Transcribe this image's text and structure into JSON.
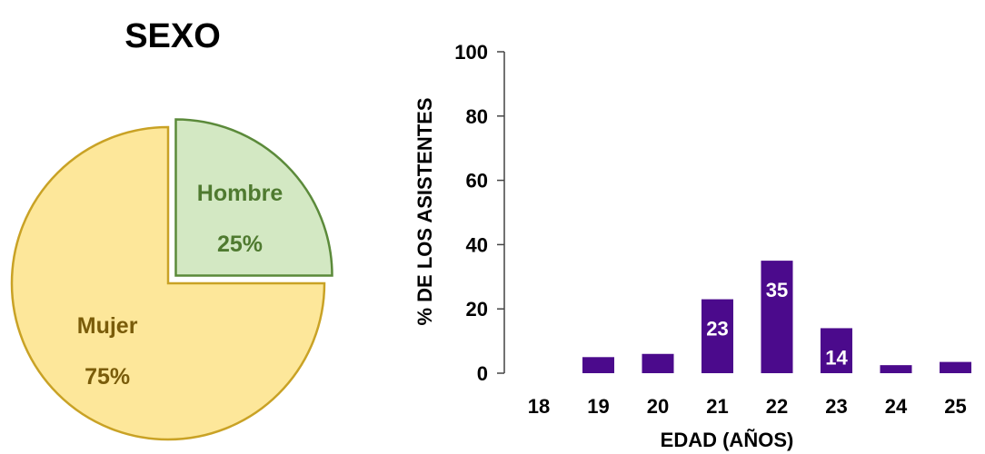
{
  "chart_data": [
    {
      "type": "pie",
      "title": "SEXO",
      "slices": [
        {
          "label": "Hombre",
          "value": 25,
          "value_label": "25%",
          "color": "#d3e8c3",
          "edge": "#5b8a3a",
          "text_color": "#4f7a30",
          "exploded": true
        },
        {
          "label": "Mujer",
          "value": 75,
          "value_label": "75%",
          "color": "#fde79a",
          "edge": "#c9a225",
          "text_color": "#7a5c0a",
          "exploded": false
        }
      ]
    },
    {
      "type": "bar",
      "xlabel": "EDAD (AÑOS)",
      "ylabel": "% DE LOS ASISTENTES",
      "ylim": [
        0,
        100
      ],
      "yticks": [
        0,
        20,
        40,
        60,
        80,
        100
      ],
      "categories": [
        "18",
        "19",
        "20",
        "21",
        "22",
        "23",
        "24",
        "25"
      ],
      "values": [
        0,
        5,
        6,
        23,
        35,
        14,
        2.5,
        3.5
      ],
      "data_labels": [
        "",
        "",
        "",
        "23",
        "35",
        "14",
        "",
        ""
      ],
      "bar_color": "#4b0a8c",
      "data_label_color": "#ffffff",
      "grid": false
    }
  ]
}
